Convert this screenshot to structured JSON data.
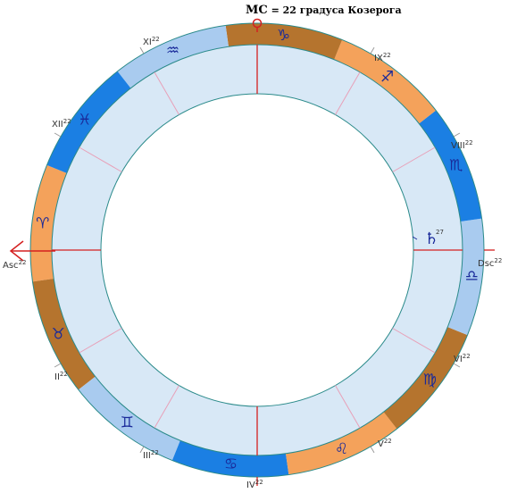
{
  "title": {
    "mc": "MC",
    "text": " = 22 градуса Козерога"
  },
  "axes": {
    "asc": "Asc",
    "dsc": "Dsc",
    "degree": "22"
  },
  "houses": [
    {
      "num": "II",
      "deg": "22"
    },
    {
      "num": "III",
      "deg": "22"
    },
    {
      "num": "IV",
      "deg": "22"
    },
    {
      "num": "V",
      "deg": "22"
    },
    {
      "num": "VI",
      "deg": "22"
    },
    {
      "num": "VIII",
      "deg": "22"
    },
    {
      "num": "IX",
      "deg": "22"
    },
    {
      "num": "XI",
      "deg": "22"
    },
    {
      "num": "XII",
      "deg": "22"
    }
  ],
  "signs": [
    {
      "name": "aries",
      "glyph": "♈",
      "color": "#f4a25b"
    },
    {
      "name": "taurus",
      "glyph": "♉",
      "color": "#b5742e"
    },
    {
      "name": "gemini",
      "glyph": "♊",
      "color": "#a9cbef"
    },
    {
      "name": "cancer",
      "glyph": "♋",
      "color": "#1b7fe3"
    },
    {
      "name": "leo",
      "glyph": "♌",
      "color": "#f4a25b"
    },
    {
      "name": "virgo",
      "glyph": "♍",
      "color": "#b5742e"
    },
    {
      "name": "libra",
      "glyph": "♎",
      "color": "#a9cbef"
    },
    {
      "name": "scorpio",
      "glyph": "♏",
      "color": "#1b7fe3"
    },
    {
      "name": "sagittarius",
      "glyph": "♐",
      "color": "#f4a25b"
    },
    {
      "name": "capricorn",
      "glyph": "♑",
      "color": "#b5742e"
    },
    {
      "name": "aquarius",
      "glyph": "♒",
      "color": "#a9cbef"
    },
    {
      "name": "pisces",
      "glyph": "♓",
      "color": "#1b7fe3"
    }
  ],
  "planet": {
    "name": "saturn",
    "glyph": "♄",
    "deg": "27"
  },
  "colors": {
    "house_band": "#d8e8f6",
    "ring_line": "#2a8a8a",
    "axis": "#d42020",
    "cusp": "#e8a0b8",
    "glyph": "#1a2a9a"
  }
}
